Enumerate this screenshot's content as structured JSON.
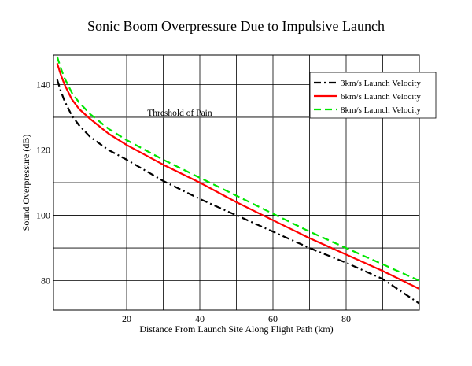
{
  "chart_data": {
    "type": "line",
    "title": "Sonic Boom Overpressure Due to Impulsive Launch",
    "xlabel": "Distance From Launch Site Along Flight Path (km)",
    "ylabel": "Sound Overpressure (dB)",
    "xlim": [
      0,
      100
    ],
    "ylim": [
      71,
      149
    ],
    "xticks": [
      20,
      40,
      60,
      80
    ],
    "yticks": [
      80,
      100,
      120,
      140
    ],
    "x_grid": [
      10,
      20,
      30,
      40,
      50,
      60,
      70,
      80,
      90
    ],
    "y_grid": [
      80,
      90,
      100,
      110,
      120,
      130,
      140
    ],
    "grid": true,
    "legend_position": "top-right",
    "threshold": {
      "label": "Threshold of Pain",
      "value": 130
    },
    "series": [
      {
        "name": "3km/s Launch Velocity",
        "color": "#000000",
        "dash": "dash-dot",
        "x": [
          1,
          2,
          3,
          5,
          7,
          10,
          15,
          20,
          30,
          40,
          50,
          60,
          70,
          80,
          90,
          100
        ],
        "y": [
          141.5,
          138,
          135,
          130.5,
          127.5,
          124,
          120,
          117,
          110.5,
          105,
          100,
          95,
          90,
          85.5,
          80.5,
          73
        ]
      },
      {
        "name": "6km/s Launch Velocity",
        "color": "#ff0000",
        "dash": "solid",
        "x": [
          1,
          2,
          3,
          5,
          7,
          10,
          15,
          20,
          30,
          40,
          50,
          60,
          70,
          80,
          90,
          100
        ],
        "y": [
          146.5,
          143,
          140,
          135.5,
          132.5,
          129.5,
          125,
          121.5,
          115.5,
          110,
          104,
          98.5,
          93,
          88,
          83,
          77.5
        ]
      },
      {
        "name": "8km/s Launch Velocity",
        "color": "#00e600",
        "dash": "dashed",
        "x": [
          1,
          2,
          3,
          5,
          7,
          10,
          15,
          20,
          30,
          40,
          50,
          60,
          70,
          80,
          90,
          100
        ],
        "y": [
          148.5,
          145,
          142,
          137.5,
          134.5,
          131,
          126.5,
          123,
          117,
          111.5,
          106,
          100.5,
          95,
          90,
          85,
          80
        ]
      }
    ]
  }
}
